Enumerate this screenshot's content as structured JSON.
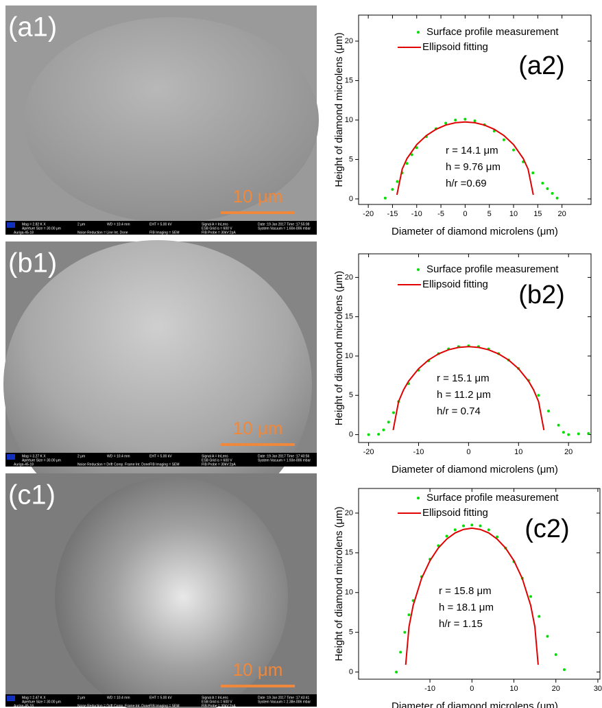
{
  "sem_images": [
    {
      "label": "(a1)",
      "scale_bar": "10 μm",
      "info_bar": [
        "Mag = 2.82 K X",
        "Aperture Size = 30.00 μm",
        "Auriga-45-18",
        "2 μm",
        "Noise Reduction = Line Int. Done",
        "WD = 10.4 mm",
        "EHT = 5.00 kV",
        "FIB Imaging = SEM",
        "Signal A = InLens",
        "ESB Grid is = 600 V",
        "FIB Probe = 30kV:2pA",
        "Date :19 Jan 2017  Time :17:55:08",
        "System Vacuum = 1.60e-006 mbar"
      ]
    },
    {
      "label": "(b1)",
      "scale_bar": "10 μm",
      "info_bar": [
        "Mag = 3.27 K X",
        "Aperture Size = 30.00 μm",
        "Auriga-45-18",
        "2 μm",
        "Noise Reduction = Drift Comp. Frame Int. Done",
        "WD = 10.4 mm",
        "EHT = 5.00 kV",
        "FIB Imaging = SEM",
        "Signal A = InLens",
        "ESB Grid is = 600 V",
        "FIB Probe = 30kV:2pA",
        "Date :19 Jan 2017  Time :17:40:56",
        "System Vacuum = 1.93e-006 mbar"
      ]
    },
    {
      "label": "(c1)",
      "scale_bar": "10 μm",
      "info_bar": [
        "Mag = 2.47 K X",
        "Aperture Size = 30.00 μm",
        "Auriga-45-18",
        "2 μm",
        "Noise Reduction = Drift Comp. Frame Int. Done",
        "WD = 10.4 mm",
        "EHT = 5.00 kV",
        "FIB Imaging = SEM",
        "Signal A = InLens",
        "ESB Grid is = 600 V",
        "FIB Probe = 30kV:2pA",
        "Date :19 Jan 2017  Time :17:43:41",
        "System Vacuum = 2.38e-006 mbar"
      ]
    }
  ],
  "chart_data": [
    {
      "type": "scatter",
      "panel_label": "(a2)",
      "x_label": "Diameter of diamond microlens (μm)",
      "y_label": "Height of diamond microlens (μm)",
      "annotations": [
        "r = 14.1 μm",
        "h = 9.76 μm",
        "h/r =0.69"
      ],
      "xlim": [
        -22,
        26
      ],
      "ylim": [
        -0.7,
        23.3
      ],
      "xticks": [
        -20,
        -15,
        -10,
        -5,
        0,
        5,
        10,
        15,
        20
      ],
      "yticks": [
        0,
        5,
        10,
        15,
        20
      ],
      "series": [
        {
          "name": "Surface profile measurement",
          "color": "#00e000",
          "mode": "markers",
          "x": [
            -16.5,
            -15,
            -14,
            -13,
            -12,
            -11,
            -10,
            -8,
            -6,
            -4,
            -2,
            0,
            2,
            4,
            6,
            8,
            10,
            12,
            14,
            16,
            17,
            18,
            19
          ],
          "values": [
            0.1,
            1.2,
            2.2,
            3.3,
            4.5,
            5.6,
            6.5,
            7.9,
            8.9,
            9.6,
            10.0,
            10.1,
            9.9,
            9.4,
            8.6,
            7.5,
            6.2,
            4.7,
            3.3,
            2.0,
            1.3,
            0.7,
            0.1
          ]
        },
        {
          "name": "Ellipsoid fitting",
          "color": "#e00000",
          "mode": "line",
          "x": [
            -14.08,
            -13,
            -12,
            -10,
            -8,
            -6,
            -4,
            -2,
            0,
            2,
            4,
            6,
            8,
            10,
            12,
            13,
            14.08
          ],
          "values": [
            0.52,
            3.78,
            5.13,
            6.88,
            8.04,
            8.83,
            9.36,
            9.66,
            9.76,
            9.66,
            9.36,
            8.83,
            8.04,
            6.88,
            5.13,
            3.78,
            0.52
          ]
        }
      ]
    },
    {
      "type": "scatter",
      "panel_label": "(b2)",
      "x_label": "Diameter of diamond microlens (μm)",
      "y_label": "Height of diamond microlens (μm)",
      "annotations": [
        "r = 15.1 μm",
        "h = 11.2 μm",
        "h/r = 0.74"
      ],
      "xlim": [
        -22,
        24.5
      ],
      "ylim": [
        -1,
        23
      ],
      "xticks": [
        -20,
        -10,
        0,
        10,
        20
      ],
      "yticks": [
        0,
        5,
        10,
        15,
        20
      ],
      "series": [
        {
          "name": "Surface profile measurement",
          "color": "#00e000",
          "mode": "markers",
          "x": [
            -20,
            -18,
            -17,
            -16,
            -15,
            -14,
            -12,
            -10,
            -8,
            -6,
            -4,
            -2,
            0,
            2,
            4,
            6,
            8,
            10,
            12,
            14,
            16,
            18,
            19,
            20,
            22,
            24
          ],
          "values": [
            0,
            0.05,
            0.6,
            1.6,
            2.8,
            4.2,
            6.5,
            8.2,
            9.4,
            10.3,
            10.9,
            11.2,
            11.3,
            11.2,
            10.9,
            10.3,
            9.5,
            8.4,
            6.9,
            5.0,
            3.0,
            1.2,
            0.3,
            0,
            0.1,
            0.15
          ]
        },
        {
          "name": "Ellipsoid fitting",
          "color": "#e00000",
          "mode": "line",
          "x": [
            -15.08,
            -14,
            -13,
            -12,
            -10,
            -8,
            -6,
            -4,
            -2,
            0,
            2,
            4,
            6,
            8,
            10,
            12,
            13,
            14,
            15.08
          ],
          "values": [
            0.58,
            4.2,
            5.7,
            6.8,
            8.39,
            9.5,
            10.28,
            10.8,
            11.1,
            11.2,
            11.1,
            10.8,
            10.28,
            9.5,
            8.39,
            6.8,
            5.7,
            4.2,
            0.58
          ]
        }
      ]
    },
    {
      "type": "scatter",
      "panel_label": "(c2)",
      "x_label": "Diameter of diamond microlens (μm)",
      "y_label": "Height of diamond microlens (μm)",
      "annotations": [
        "r = 15.8 μm",
        "h = 18.1 μm",
        "h/r = 1.15"
      ],
      "xlim": [
        -27,
        30.5
      ],
      "ylim": [
        -0.9,
        23.1
      ],
      "xticks": [
        -10,
        0,
        10,
        20,
        30
      ],
      "yticks": [
        0,
        5,
        10,
        15,
        20
      ],
      "series": [
        {
          "name": "Surface profile measurement",
          "color": "#00e000",
          "mode": "markers",
          "x": [
            -18,
            -17,
            -16,
            -15,
            -14,
            -12,
            -10,
            -8,
            -6,
            -4,
            -2,
            0,
            2,
            4,
            6,
            8,
            10,
            12,
            14,
            16,
            18,
            20,
            22
          ],
          "values": [
            0,
            2.5,
            5.0,
            7.2,
            9.0,
            12.0,
            14.2,
            15.9,
            17.1,
            17.9,
            18.4,
            18.5,
            18.4,
            17.9,
            17.0,
            15.6,
            13.9,
            11.8,
            9.5,
            7.0,
            4.5,
            2.2,
            0.3
          ]
        },
        {
          "name": "Ellipsoid fitting",
          "color": "#e00000",
          "mode": "line",
          "x": [
            -15.78,
            -15,
            -14,
            -12,
            -10,
            -8,
            -6,
            -4,
            -2,
            0,
            2,
            4,
            6,
            8,
            10,
            12,
            14,
            15,
            15.78
          ],
          "values": [
            0.91,
            5.69,
            8.39,
            11.77,
            14.01,
            15.61,
            16.74,
            17.51,
            17.95,
            18.1,
            17.95,
            17.51,
            16.74,
            15.61,
            14.01,
            11.77,
            8.39,
            5.69,
            0.91
          ]
        }
      ]
    }
  ]
}
